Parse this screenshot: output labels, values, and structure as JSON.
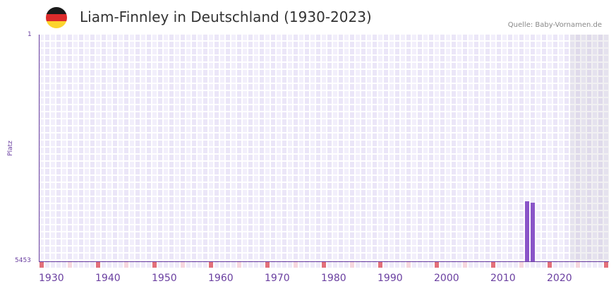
{
  "header": {
    "flag_icon": "germany-flag-icon",
    "flag_colors": [
      "#1a1a1a",
      "#dd2b2b",
      "#fcd42e"
    ],
    "title": "Liam-Finnley in Deutschland (1930-2023)",
    "source": "Quelle: Baby-Vornamen.de"
  },
  "colors": {
    "bar": "#8a55c8",
    "axis": "#6a3fa0",
    "grid_a": "#f2effb",
    "grid_b": "#ebe6f8",
    "decade_marker": "#e26f7a",
    "half_decade_marker": "#f6d6de",
    "year_marker": "#efebf9"
  },
  "chart_data": {
    "type": "bar",
    "title": "Liam-Finnley in Deutschland (1930-2023)",
    "xlabel": "",
    "ylabel": "Platz",
    "y_inverted": true,
    "ylim": [
      5453,
      1
    ],
    "y_tick_labels": [
      "1",
      "5453"
    ],
    "xlim": [
      1930,
      2030
    ],
    "x_tick_labels": [
      "1930",
      "1940",
      "1950",
      "1960",
      "1970",
      "1980",
      "1990",
      "2000",
      "2010",
      "2020"
    ],
    "shaded_future_from": 2024,
    "categories": [
      2016,
      2017
    ],
    "values": [
      4009,
      4043
    ],
    "series": [
      {
        "name": "Platz",
        "x": [
          2016,
          2017
        ],
        "values": [
          4009,
          4043
        ]
      }
    ],
    "grid": true,
    "legend": null
  },
  "axis": {
    "y_top": "1",
    "y_bottom": "5453",
    "y_title": "Platz",
    "x_ticks": [
      "1930",
      "1940",
      "1950",
      "1960",
      "1970",
      "1980",
      "1990",
      "2000",
      "2010",
      "2020"
    ]
  }
}
